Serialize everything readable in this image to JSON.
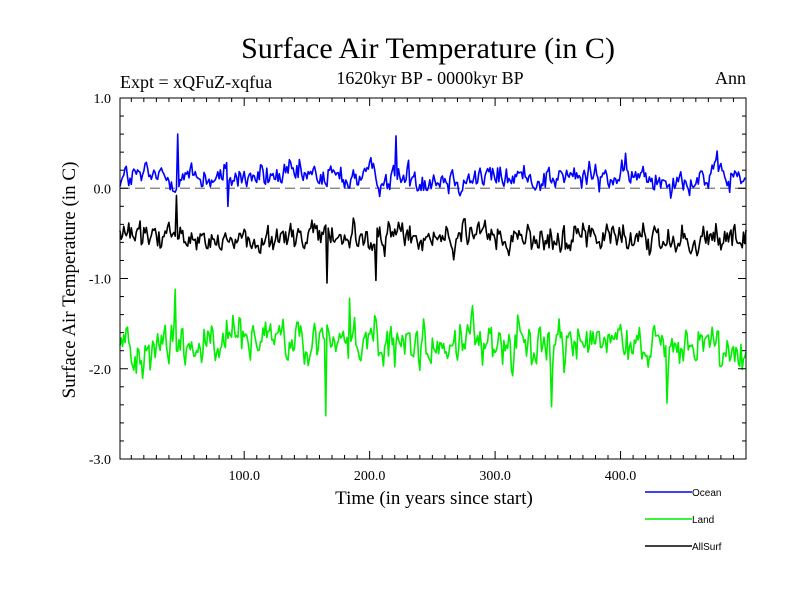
{
  "chart_data": {
    "type": "line",
    "title": "Surface Air Temperature (in C)",
    "subtitle": "1620kyr BP - 0000kyr BP",
    "expt_label": "Expt = xQFuZ-xqfua",
    "period_label": "Ann",
    "xlabel": "Time (in years since start)",
    "ylabel": "Surface Air Temperature (in C)",
    "xlim": [
      1,
      500
    ],
    "ylim": [
      -3.0,
      1.0
    ],
    "xticks": [
      100,
      200,
      300,
      400
    ],
    "xtick_labels": [
      "100.0",
      "200.0",
      "300.0",
      "400.0"
    ],
    "yticks": [
      -3,
      -2,
      -1,
      0,
      1
    ],
    "ytick_labels": [
      "-3.0",
      "-2.0",
      "-1.0",
      "0.0",
      "1.0"
    ],
    "zero_line": 0.0,
    "series": [
      {
        "name": "Ocean",
        "color": "#0000ff",
        "mean": 0.12,
        "variability": 0.13,
        "anomalies": [
          {
            "x": 47,
            "y": 0.6
          },
          {
            "x": 221,
            "y": 0.58
          },
          {
            "x": 87,
            "y": -0.2
          }
        ]
      },
      {
        "name": "Land",
        "color": "#00ee00",
        "mean": -1.72,
        "variability": 0.22,
        "anomalies": [
          {
            "x": 45,
            "y": -1.12
          },
          {
            "x": 184,
            "y": -1.22
          },
          {
            "x": 165,
            "y": -2.52
          },
          {
            "x": 345,
            "y": -2.42
          },
          {
            "x": 437,
            "y": -2.38
          }
        ]
      },
      {
        "name": "AllSurf",
        "color": "#000000",
        "mean": -0.55,
        "variability": 0.14,
        "anomalies": [
          {
            "x": 46,
            "y": -0.08
          },
          {
            "x": 166,
            "y": -1.05
          },
          {
            "x": 205,
            "y": -1.02
          }
        ]
      }
    ]
  }
}
